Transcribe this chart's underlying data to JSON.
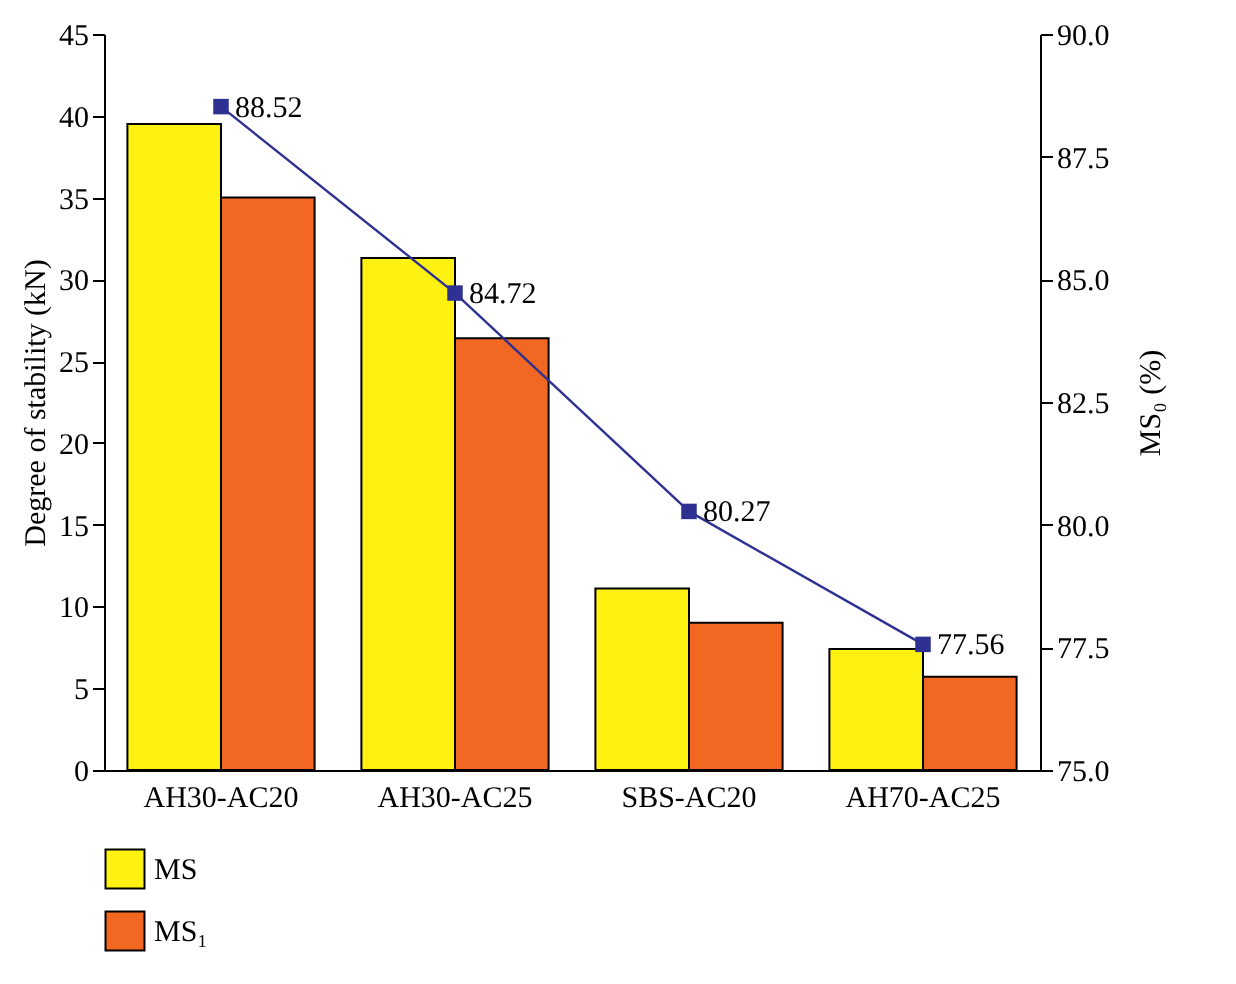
{
  "chart_data": {
    "type": "bar",
    "ylabel": "Degree of stability (kN)",
    "y2label": "MS₀ (%)",
    "categories": [
      "AH30-AC20",
      "AH30-AC25",
      "SBS-AC20",
      "AH70-AC25"
    ],
    "series": [
      {
        "name": "MS",
        "color": "#fff212",
        "values": [
          39.5,
          31.3,
          11.1,
          7.4
        ]
      },
      {
        "name": "MS₁",
        "color": "#f26722",
        "values": [
          35.0,
          26.4,
          9.0,
          5.7
        ]
      },
      {
        "type": "line",
        "axis": "y2",
        "color": "#2e3192",
        "marker": "square",
        "data_labels": true,
        "values": [
          88.52,
          84.72,
          80.27,
          77.56
        ]
      }
    ],
    "ylim": [
      0,
      45
    ],
    "yticks": [
      0,
      5,
      10,
      15,
      20,
      25,
      30,
      35,
      40,
      45
    ],
    "y2lim": [
      75,
      90
    ],
    "y2ticks": [
      {
        "value": 75,
        "label": "75.0"
      },
      {
        "value": 77.5,
        "label": "77.5"
      },
      {
        "value": 80,
        "label": "80.0"
      },
      {
        "value": 82.5,
        "label": "82.5"
      },
      {
        "value": 85,
        "label": "85.0"
      },
      {
        "value": 87.5,
        "label": "87.5"
      },
      {
        "value": 90,
        "label": "90.0"
      }
    ],
    "grid": false,
    "legend": "bottom left"
  }
}
